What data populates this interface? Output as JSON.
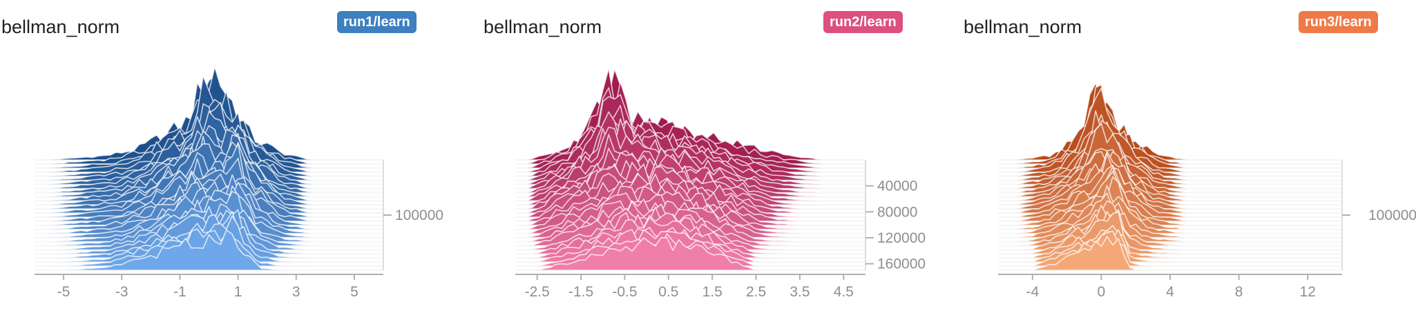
{
  "chart_data": [
    {
      "type": "area",
      "title": "bellman_norm",
      "run_tag": "run1/learn",
      "color": "#3d7fbf",
      "color_light": "#6fa8ea",
      "color_dark": "#1d4f8c",
      "x_ticks": [
        "-5",
        "-3",
        "-1",
        "1",
        "3",
        "5"
      ],
      "x_tick_values": [
        -5,
        -3,
        -1,
        1,
        3,
        5
      ],
      "xlim": [
        -6,
        6
      ],
      "y_ticks": [
        "100000"
      ],
      "y_tick_values": [
        100000
      ],
      "ylim": [
        0,
        200000
      ],
      "series": [
        {
          "step": 0,
          "x": [
            -5.5,
            -3.5,
            -2.5,
            -1.5,
            -0.8,
            -0.4,
            -0.1,
            0.4,
            0.8,
            1.5,
            2.5,
            3.5
          ],
          "y": [
            0,
            0.05,
            0.12,
            0.28,
            0.42,
            0.7,
            1.0,
            0.85,
            0.6,
            0.25,
            0.08,
            0
          ]
        },
        {
          "step": 100000,
          "x": [
            -5.5,
            -3,
            -2,
            -1,
            -0.5,
            0,
            0.5,
            1,
            1.5,
            2.5,
            3.5
          ],
          "y": [
            0,
            0.1,
            0.25,
            0.45,
            0.6,
            0.55,
            0.5,
            0.75,
            0.4,
            0.1,
            0
          ]
        },
        {
          "step": 200000,
          "x": [
            -5,
            -3.5,
            -2,
            -1,
            0,
            0.8,
            1.3,
            1.7,
            2.5
          ],
          "y": [
            0,
            0.05,
            0.25,
            0.4,
            0.55,
            0.6,
            0.3,
            0.05,
            0
          ]
        }
      ]
    },
    {
      "type": "area",
      "title": "bellman_norm",
      "run_tag": "run2/learn",
      "color": "#dd4f81",
      "color_light": "#f07fa8",
      "color_dark": "#a01c4f",
      "x_ticks": [
        "-2.5",
        "-1.5",
        "-0.5",
        "0.5",
        "1.5",
        "2.5",
        "3.5",
        "4.5"
      ],
      "x_tick_values": [
        -2.5,
        -1.5,
        -0.5,
        0.5,
        1.5,
        2.5,
        3.5,
        4.5
      ],
      "xlim": [
        -3,
        5
      ],
      "y_ticks": [
        "40000",
        "80000",
        "120000",
        "160000"
      ],
      "y_tick_values": [
        40000,
        80000,
        120000,
        160000
      ],
      "ylim": [
        0,
        170000
      ],
      "series": [
        {
          "step": 0,
          "x": [
            -2.7,
            -1.8,
            -1.2,
            -0.9,
            -0.6,
            -0.3,
            0.3,
            1.0,
            2.0,
            3.0,
            4.0
          ],
          "y": [
            0,
            0.15,
            0.5,
            1.0,
            0.9,
            0.55,
            0.45,
            0.35,
            0.2,
            0.08,
            0
          ]
        },
        {
          "step": 80000,
          "x": [
            -2.7,
            -2.0,
            -1.0,
            -0.5,
            0.3,
            1.0,
            2.0,
            2.8,
            3.5
          ],
          "y": [
            0,
            0.25,
            0.5,
            0.6,
            0.55,
            0.45,
            0.25,
            0.05,
            0
          ]
        },
        {
          "step": 160000,
          "x": [
            -2.5,
            -1.5,
            -0.5,
            0.5,
            1.5,
            2.5
          ],
          "y": [
            0,
            0.2,
            0.45,
            0.5,
            0.3,
            0
          ]
        }
      ]
    },
    {
      "type": "area",
      "title": "bellman_norm",
      "run_tag": "run3/learn",
      "color": "#ee7a48",
      "color_light": "#f4a877",
      "color_dark": "#b74a1c",
      "x_ticks": [
        "-4",
        "0",
        "4",
        "8",
        "12"
      ],
      "x_tick_values": [
        -4,
        0,
        4,
        8,
        12
      ],
      "xlim": [
        -6,
        14
      ],
      "y_ticks": [
        "100000"
      ],
      "y_tick_values": [
        100000
      ],
      "ylim": [
        0,
        200000
      ],
      "series": [
        {
          "step": 0,
          "x": [
            -5,
            -3,
            -1.5,
            -0.5,
            -0.2,
            0.3,
            0.8,
            2,
            3.5,
            5
          ],
          "y": [
            0,
            0.05,
            0.25,
            0.7,
            1.0,
            0.7,
            0.45,
            0.2,
            0.05,
            0
          ]
        },
        {
          "step": 100000,
          "x": [
            -5,
            -3,
            -1,
            0,
            0.5,
            1.5,
            3,
            5
          ],
          "y": [
            0,
            0.1,
            0.35,
            0.6,
            0.7,
            0.4,
            0.1,
            0
          ]
        },
        {
          "step": 200000,
          "x": [
            -4,
            -2,
            0,
            1,
            1.6,
            2.2
          ],
          "y": [
            0,
            0.2,
            0.45,
            0.55,
            0.05,
            0
          ]
        }
      ]
    }
  ]
}
